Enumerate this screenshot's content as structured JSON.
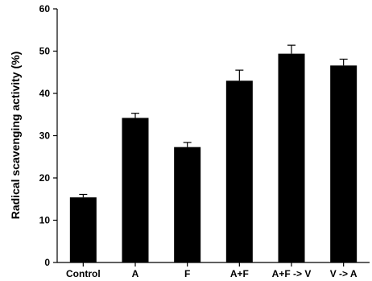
{
  "chart_data": {
    "type": "bar",
    "title": "",
    "xlabel": "",
    "ylabel": "Radical scavenging activity (%)",
    "ylim": [
      0,
      60
    ],
    "yticks": [
      0,
      10,
      20,
      30,
      40,
      50,
      60
    ],
    "categories": [
      "Control",
      "A",
      "F",
      "A+F",
      "A+F -> V",
      "V -> A"
    ],
    "values": [
      15.4,
      34.2,
      27.3,
      43.0,
      49.4,
      46.6
    ],
    "errors": [
      0.7,
      1.1,
      1.1,
      2.5,
      2.0,
      1.5
    ],
    "bar_color": "#000000",
    "grid": false,
    "legend": "none"
  }
}
